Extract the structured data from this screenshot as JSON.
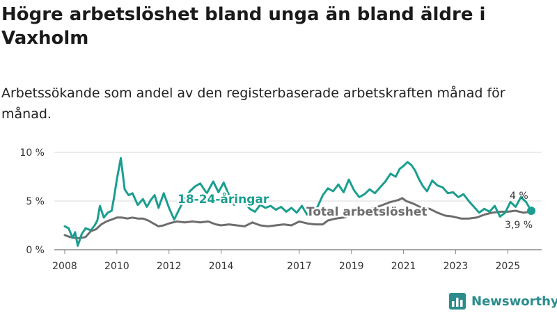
{
  "title": "Högre arbetslöshet bland unga än bland äldre i Vaxholm",
  "subtitle": "Arbetssökande som andel av den registerbaserade arbetskraften månad för månad.",
  "brand": "Newsworthy",
  "chart_data": {
    "type": "line",
    "xlim": [
      2007.6,
      2026.3
    ],
    "ylim": [
      0,
      10
    ],
    "y_ticks": [
      {
        "value": 0,
        "label": "0 %"
      },
      {
        "value": 5,
        "label": "5 %"
      },
      {
        "value": 10,
        "label": "10 %"
      }
    ],
    "x_ticks": [
      {
        "value": 2008,
        "label": "2008"
      },
      {
        "value": 2010,
        "label": "2010"
      },
      {
        "value": 2012,
        "label": "2012"
      },
      {
        "value": 2014,
        "label": "2014"
      },
      {
        "value": 2017,
        "label": "2017"
      },
      {
        "value": 2019,
        "label": "2019"
      },
      {
        "value": 2021,
        "label": "2021"
      },
      {
        "value": 2023,
        "label": "2023"
      },
      {
        "value": 2025,
        "label": "2025"
      }
    ],
    "series": [
      {
        "name": "Total arbetslöshet",
        "color": "#6d6d6d",
        "end_label": "3,9 %",
        "x": [
          2008.0,
          2008.2,
          2008.4,
          2008.6,
          2008.8,
          2009.0,
          2009.2,
          2009.4,
          2009.6,
          2009.8,
          2010.0,
          2010.2,
          2010.4,
          2010.6,
          2010.8,
          2011.0,
          2011.2,
          2011.4,
          2011.6,
          2011.8,
          2012.0,
          2012.3,
          2012.6,
          2012.9,
          2013.2,
          2013.5,
          2013.8,
          2014.0,
          2014.3,
          2014.6,
          2014.9,
          2015.2,
          2015.5,
          2015.8,
          2016.1,
          2016.4,
          2016.7,
          2017.0,
          2017.3,
          2017.6,
          2017.9,
          2018.1,
          2018.4,
          2018.7,
          2019.0,
          2019.3,
          2019.6,
          2019.9,
          2020.2,
          2020.5,
          2020.8,
          2020.95,
          2021.1,
          2021.4,
          2021.7,
          2022.0,
          2022.3,
          2022.6,
          2022.9,
          2023.2,
          2023.5,
          2023.8,
          2024.1,
          2024.4,
          2024.7,
          2025.0,
          2025.3,
          2025.6,
          2025.9
        ],
        "values": [
          1.5,
          1.3,
          1.2,
          1.2,
          1.3,
          1.9,
          2.1,
          2.6,
          2.9,
          3.1,
          3.3,
          3.3,
          3.2,
          3.3,
          3.2,
          3.2,
          3.0,
          2.7,
          2.4,
          2.5,
          2.7,
          2.9,
          2.8,
          2.9,
          2.8,
          2.9,
          2.6,
          2.5,
          2.6,
          2.5,
          2.4,
          2.8,
          2.5,
          2.4,
          2.5,
          2.6,
          2.5,
          2.9,
          2.7,
          2.6,
          2.6,
          3.0,
          3.2,
          3.3,
          3.6,
          3.8,
          4.1,
          4.3,
          4.6,
          4.9,
          5.1,
          5.3,
          5.0,
          4.7,
          4.3,
          4.2,
          3.8,
          3.5,
          3.4,
          3.2,
          3.2,
          3.3,
          3.6,
          3.8,
          3.9,
          3.9,
          4.0,
          3.8,
          3.9
        ]
      },
      {
        "name": "18-24-åringar",
        "color": "#1b9e8f",
        "end_label": "4 %",
        "x": [
          2008.0,
          2008.15,
          2008.3,
          2008.4,
          2008.5,
          2008.65,
          2008.8,
          2009.0,
          2009.15,
          2009.25,
          2009.35,
          2009.5,
          2009.65,
          2009.8,
          2009.9,
          2010.0,
          2010.15,
          2010.3,
          2010.45,
          2010.6,
          2010.8,
          2011.0,
          2011.15,
          2011.3,
          2011.45,
          2011.6,
          2011.8,
          2012.0,
          2012.2,
          2012.4,
          2012.6,
          2012.8,
          2013.0,
          2013.2,
          2013.45,
          2013.7,
          2013.9,
          2014.1,
          2014.3,
          2014.5,
          2014.7,
          2014.9,
          2015.1,
          2015.3,
          2015.5,
          2015.7,
          2015.9,
          2016.1,
          2016.3,
          2016.5,
          2016.7,
          2016.9,
          2017.1,
          2017.3,
          2017.5,
          2017.7,
          2017.9,
          2018.1,
          2018.3,
          2018.5,
          2018.7,
          2018.9,
          2019.1,
          2019.3,
          2019.5,
          2019.7,
          2019.9,
          2020.1,
          2020.3,
          2020.5,
          2020.7,
          2020.85,
          2021.0,
          2021.15,
          2021.3,
          2021.45,
          2021.6,
          2021.75,
          2021.9,
          2022.1,
          2022.3,
          2022.5,
          2022.7,
          2022.9,
          2023.1,
          2023.3,
          2023.5,
          2023.7,
          2023.9,
          2024.1,
          2024.3,
          2024.5,
          2024.7,
          2024.9,
          2025.1,
          2025.3,
          2025.5,
          2025.7,
          2025.9
        ],
        "values": [
          2.4,
          2.2,
          1.2,
          1.8,
          0.4,
          1.6,
          2.2,
          2.0,
          2.5,
          3.0,
          4.5,
          3.3,
          3.8,
          4.0,
          5.5,
          7.2,
          9.4,
          6.2,
          5.6,
          5.8,
          4.6,
          5.2,
          4.4,
          5.1,
          5.6,
          4.3,
          5.8,
          4.3,
          3.1,
          4.2,
          5.2,
          6.0,
          6.5,
          6.8,
          5.8,
          7.0,
          5.9,
          6.9,
          5.6,
          4.6,
          5.4,
          4.9,
          4.2,
          3.9,
          4.6,
          4.3,
          4.5,
          4.1,
          4.4,
          3.9,
          4.3,
          3.8,
          4.5,
          3.6,
          3.9,
          4.4,
          5.6,
          6.3,
          6.0,
          6.7,
          5.9,
          7.2,
          6.1,
          5.4,
          5.7,
          6.2,
          5.8,
          6.4,
          7.0,
          7.8,
          7.5,
          8.3,
          8.6,
          9.0,
          8.7,
          8.1,
          7.2,
          6.5,
          6.0,
          7.1,
          6.6,
          6.4,
          5.8,
          5.9,
          5.4,
          5.7,
          5.0,
          4.4,
          3.8,
          4.2,
          3.9,
          4.5,
          3.4,
          3.8,
          4.9,
          4.4,
          5.4,
          4.9,
          4.0
        ]
      }
    ],
    "annotations": [
      {
        "text": "18-24-åringar",
        "series": "18-24-åringar"
      },
      {
        "text": "Total arbetslöshet",
        "series": "Total arbetslöshet"
      }
    ]
  }
}
